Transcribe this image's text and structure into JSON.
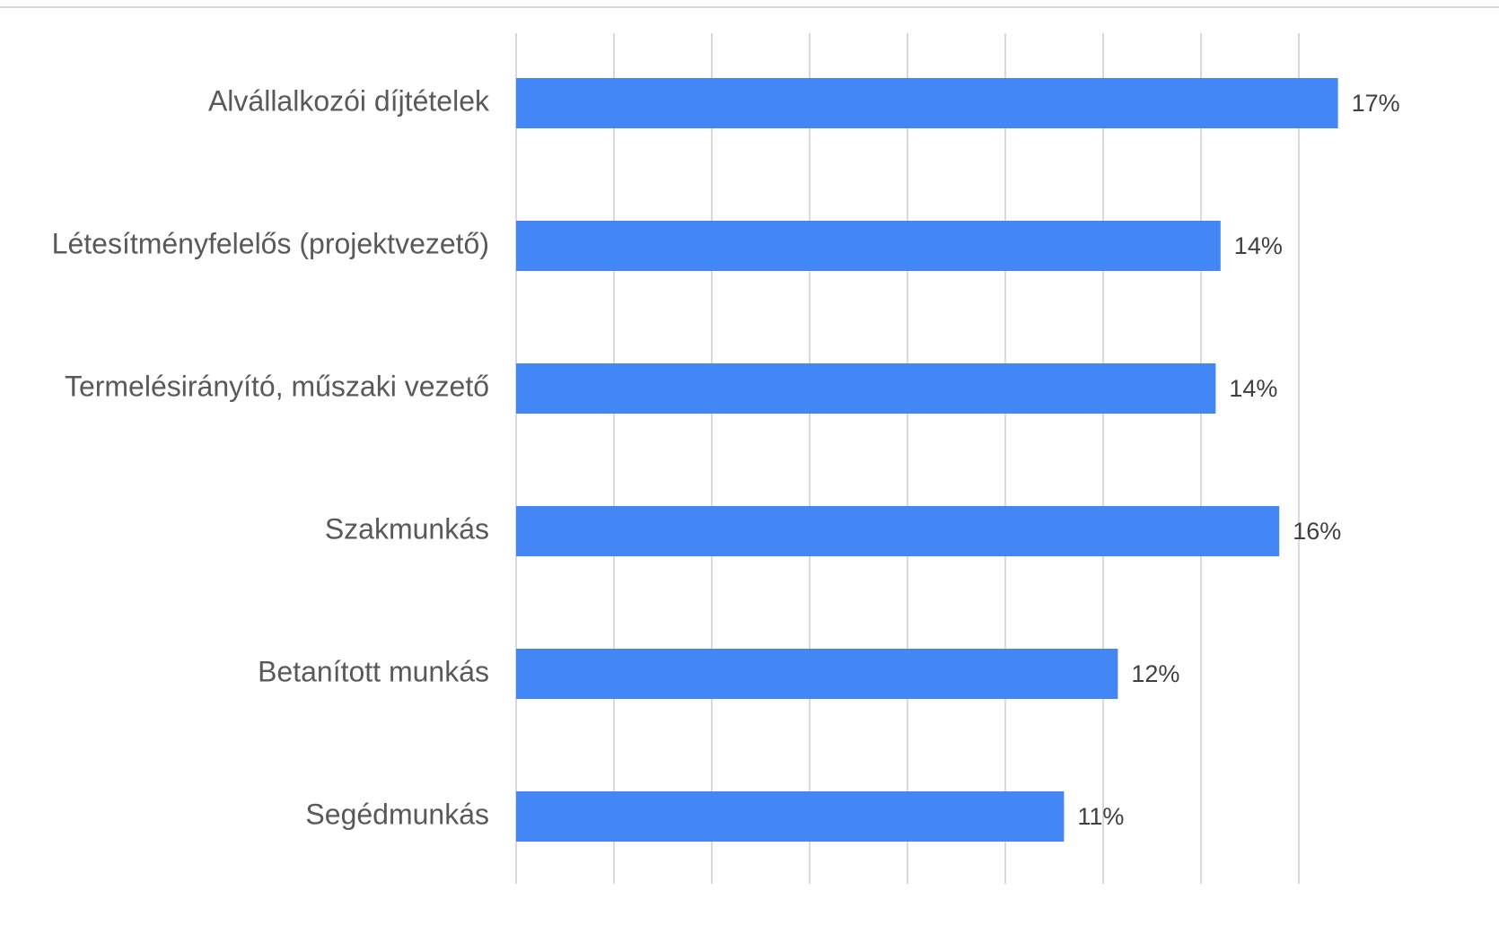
{
  "chart_data": {
    "type": "hbar",
    "categories": [
      "Alvállalkozói díjtételek",
      "Létesítményfelelős (projektvezető)",
      "Termelésirányító, műszaki vezető",
      "Szakmunkás",
      "Betanított munkás",
      "Segédmunkás"
    ],
    "values": [
      16.8,
      14.4,
      14.3,
      15.6,
      12.3,
      11.2
    ],
    "value_labels": [
      "17%",
      "14%",
      "14%",
      "16%",
      "12%",
      "11%"
    ],
    "color": "#4287f5",
    "xlim": [
      0,
      18
    ],
    "xticks": [
      0,
      2,
      4,
      6,
      8,
      10,
      12,
      14,
      16
    ],
    "grid": true
  }
}
